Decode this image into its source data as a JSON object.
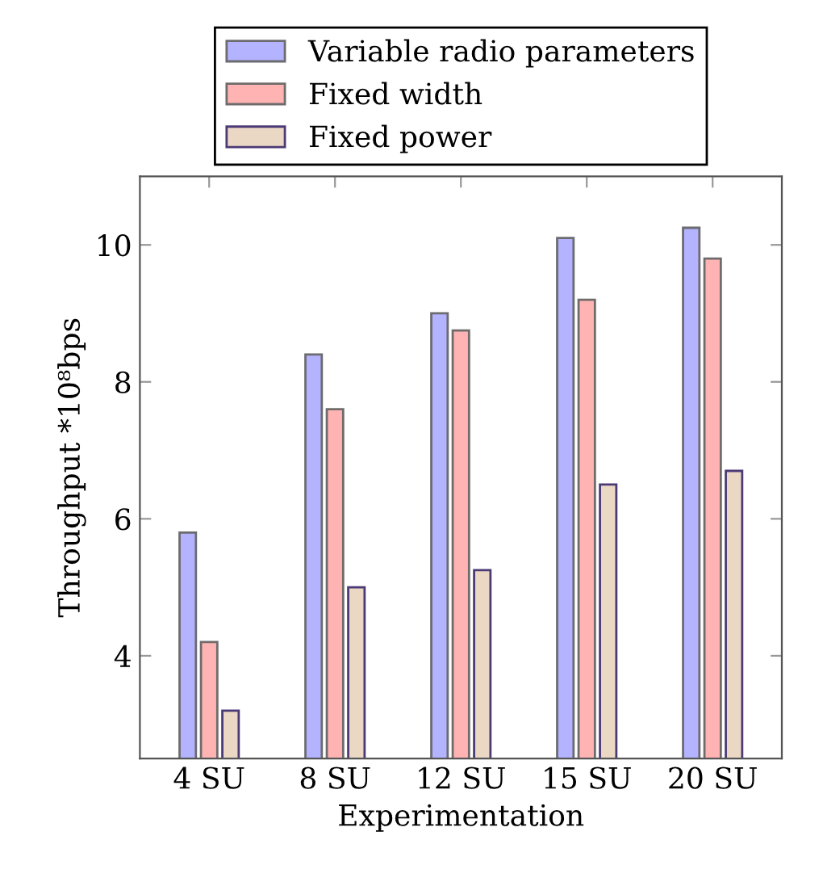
{
  "chart_data": {
    "type": "bar",
    "xlabel": "Experimentation",
    "ylabel": "Throughput *10⁸bps",
    "categories": [
      "4 SU",
      "8 SU",
      "12 SU",
      "15 SU",
      "20 SU"
    ],
    "series": [
      {
        "name": "Variable radio parameters",
        "color": "#b3b3ff",
        "values": [
          5.8,
          8.4,
          9.0,
          10.1,
          10.25
        ]
      },
      {
        "name": "Fixed width",
        "color": "#ffb3b3",
        "values": [
          4.2,
          7.6,
          8.75,
          9.2,
          9.8
        ]
      },
      {
        "name": "Fixed power",
        "color": "#ead8c5",
        "values": [
          3.2,
          5.0,
          5.25,
          6.5,
          6.7
        ]
      }
    ],
    "ylim": [
      2.5,
      11
    ],
    "yticks": [
      4,
      6,
      8,
      10
    ],
    "legend": "top",
    "grid": false
  }
}
